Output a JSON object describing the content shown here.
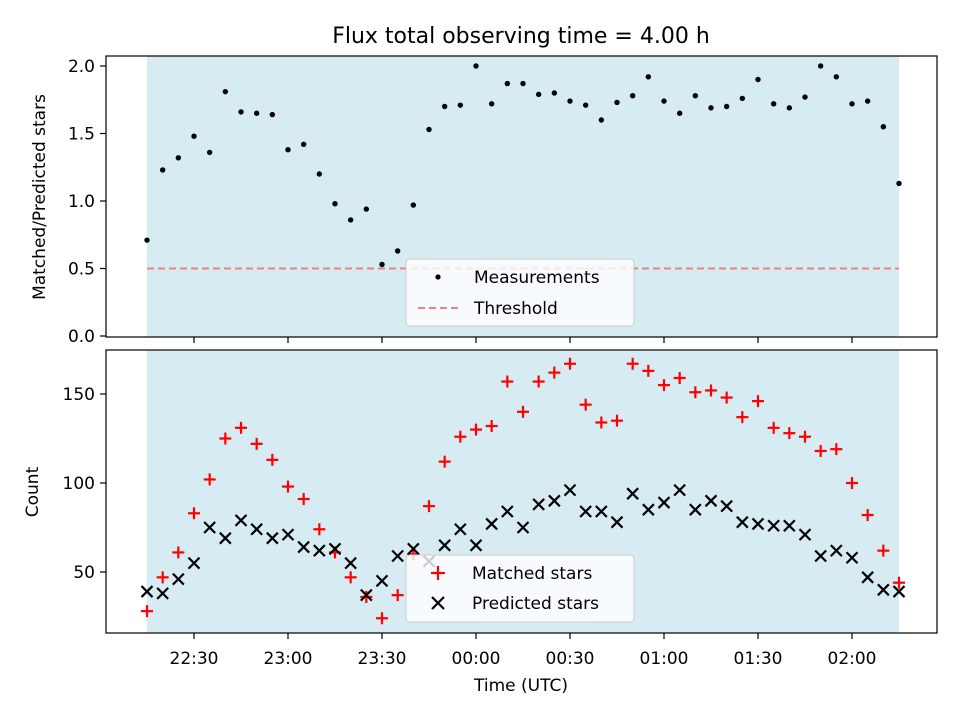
{
  "chart_data": [
    {
      "type": "scatter",
      "title": "Flux total observing time = 4.00 h",
      "ylabel": "Matched/Predicted stars",
      "xlabel": "",
      "ylim": [
        0,
        2.08
      ],
      "yticks": [
        "0.0",
        "0.5",
        "1.0",
        "1.5",
        "2.0"
      ],
      "ytick_values": [
        0,
        0.5,
        1.0,
        1.5,
        2.0
      ],
      "shaded_span": [
        "22:15",
        "02:15"
      ],
      "threshold": 0.5,
      "legend_position": "lower-center",
      "series": [
        {
          "name": "Measurements",
          "marker": "dot",
          "color": "#000000",
          "x": [
            "22:15",
            "22:20",
            "22:25",
            "22:30",
            "22:35",
            "22:40",
            "22:45",
            "22:50",
            "22:55",
            "23:00",
            "23:05",
            "23:10",
            "23:15",
            "23:20",
            "23:25",
            "23:30",
            "23:35",
            "23:40",
            "23:45",
            "23:50",
            "23:55",
            "00:00",
            "00:05",
            "00:10",
            "00:15",
            "00:20",
            "00:25",
            "00:30",
            "00:35",
            "00:40",
            "00:45",
            "00:50",
            "00:55",
            "01:00",
            "01:05",
            "01:10",
            "01:15",
            "01:20",
            "01:25",
            "01:30",
            "01:35",
            "01:40",
            "01:45",
            "01:50",
            "01:55",
            "02:00",
            "02:05",
            "02:10",
            "02:15"
          ],
          "y": [
            0.71,
            1.23,
            1.32,
            1.48,
            1.36,
            1.81,
            1.66,
            1.65,
            1.64,
            1.38,
            1.42,
            1.2,
            0.98,
            0.86,
            0.94,
            0.53,
            0.63,
            0.97,
            1.53,
            1.7,
            1.71,
            2.0,
            1.72,
            1.87,
            1.87,
            1.79,
            1.8,
            1.74,
            1.71,
            1.6,
            1.73,
            1.78,
            1.92,
            1.74,
            1.65,
            1.78,
            1.69,
            1.7,
            1.76,
            1.9,
            1.72,
            1.69,
            1.77,
            2.0,
            1.92,
            1.72,
            1.74,
            1.55,
            1.13
          ]
        },
        {
          "name": "Threshold",
          "marker": "dashed-line",
          "color": "#f08080",
          "x": [
            "22:15",
            "02:15"
          ],
          "y": [
            0.5,
            0.5
          ]
        }
      ]
    },
    {
      "type": "scatter",
      "title": "",
      "ylabel": "Count",
      "xlabel": "Time (UTC)",
      "ylim": [
        16,
        173
      ],
      "yticks": [
        "50",
        "100",
        "150"
      ],
      "ytick_values": [
        50,
        100,
        150
      ],
      "x_ticks": [
        "22:30",
        "23:00",
        "23:30",
        "00:00",
        "00:30",
        "01:00",
        "01:30",
        "02:00"
      ],
      "shaded_span": [
        "22:15",
        "02:15"
      ],
      "legend_position": "lower-center",
      "series": [
        {
          "name": "Matched stars",
          "marker": "plus",
          "color": "#ff0000",
          "x": [
            "22:15",
            "22:20",
            "22:25",
            "22:30",
            "22:35",
            "22:40",
            "22:45",
            "22:50",
            "22:55",
            "23:00",
            "23:05",
            "23:10",
            "23:15",
            "23:20",
            "23:25",
            "23:30",
            "23:35",
            "23:40",
            "23:45",
            "23:50",
            "23:55",
            "00:00",
            "00:05",
            "00:10",
            "00:15",
            "00:20",
            "00:25",
            "00:30",
            "00:35",
            "00:40",
            "00:45",
            "00:50",
            "00:55",
            "01:00",
            "01:05",
            "01:10",
            "01:15",
            "01:20",
            "01:25",
            "01:30",
            "01:35",
            "01:40",
            "01:45",
            "01:50",
            "01:55",
            "02:00",
            "02:05",
            "02:10",
            "02:15"
          ],
          "y": [
            28,
            47,
            61,
            83,
            102,
            125,
            131,
            122,
            113,
            98,
            91,
            74,
            61,
            47,
            36,
            24,
            37,
            60,
            87,
            112,
            126,
            130,
            132,
            157,
            140,
            157,
            162,
            167,
            144,
            134,
            135,
            167,
            163,
            155,
            159,
            151,
            152,
            148,
            137,
            146,
            131,
            128,
            126,
            118,
            119,
            100,
            82,
            62,
            44
          ]
        },
        {
          "name": "Predicted stars",
          "marker": "x",
          "color": "#000000",
          "x": [
            "22:15",
            "22:20",
            "22:25",
            "22:30",
            "22:35",
            "22:40",
            "22:45",
            "22:50",
            "22:55",
            "23:00",
            "23:05",
            "23:10",
            "23:15",
            "23:20",
            "23:25",
            "23:30",
            "23:35",
            "23:40",
            "23:45",
            "23:50",
            "23:55",
            "00:00",
            "00:05",
            "00:10",
            "00:15",
            "00:20",
            "00:25",
            "00:30",
            "00:35",
            "00:40",
            "00:45",
            "00:50",
            "00:55",
            "01:00",
            "01:05",
            "01:10",
            "01:15",
            "01:20",
            "01:25",
            "01:30",
            "01:35",
            "01:40",
            "01:45",
            "01:50",
            "01:55",
            "02:00",
            "02:05",
            "02:10",
            "02:15"
          ],
          "y": [
            39,
            38,
            46,
            55,
            75,
            69,
            79,
            74,
            69,
            71,
            64,
            62,
            63,
            55,
            37,
            45,
            59,
            63,
            56,
            65,
            74,
            65,
            77,
            84,
            75,
            88,
            90,
            96,
            84,
            84,
            78,
            94,
            85,
            89,
            96,
            85,
            90,
            87,
            78,
            77,
            76,
            76,
            71,
            59,
            62,
            58,
            47,
            40,
            39
          ]
        }
      ]
    }
  ],
  "theme": {
    "shade_color": "#add8e6",
    "shade_opacity": 0.5,
    "threshold_color": "#f08080",
    "matched_color": "#ff0000",
    "predicted_color": "#000000",
    "legend_bg": "#ffffff"
  }
}
